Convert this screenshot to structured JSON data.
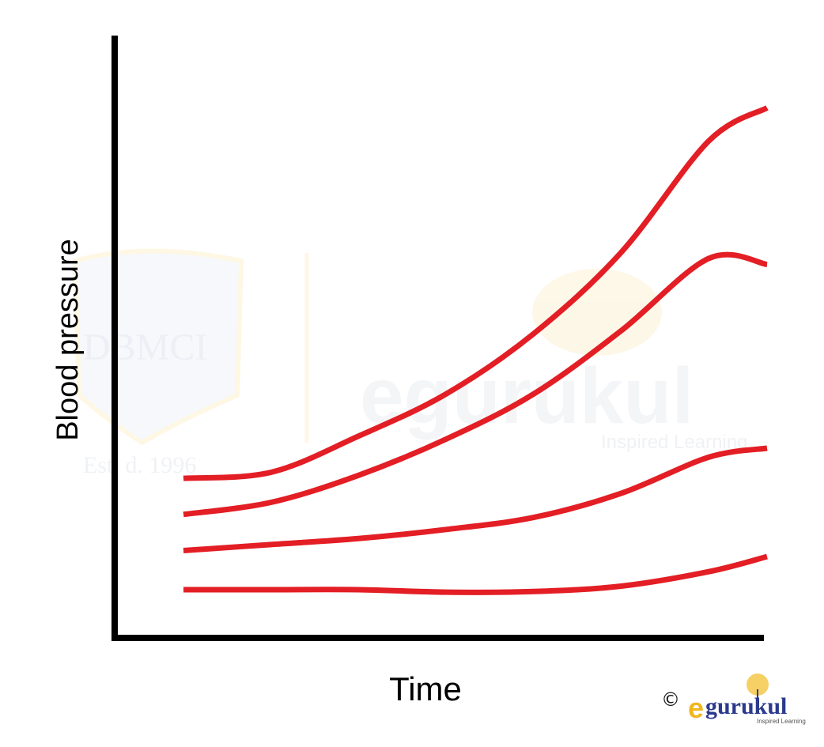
{
  "watermark": {
    "left_emblem_text": "DBMCI",
    "established": "Est. d. 1996",
    "brand": "egurukul",
    "brand_tagline": "Inspired Learning"
  },
  "footer_logo": {
    "copyright_symbol": "©",
    "brand_e": "e",
    "brand_rest": "gurukul",
    "tagline": "Inspired Learning"
  },
  "colors": {
    "curve": "#e31e25",
    "axis": "#000000",
    "logo_gold": "#f2b51d",
    "logo_blue": "#2b3a8c"
  },
  "chart_data": {
    "type": "line",
    "title": "",
    "xlabel": "Time",
    "ylabel": "Blood pressure",
    "xlim": [
      0,
      100
    ],
    "ylim": [
      0,
      100
    ],
    "grid": false,
    "legend": "none",
    "axis_ticks": "none",
    "series": [
      {
        "x": [
          0,
          15,
          30,
          45,
          60,
          75,
          90,
          100
        ],
        "values": [
          26.5,
          27.5,
          33.5,
          40.5,
          50.5,
          64,
          82.5,
          88
        ]
      },
      {
        "x": [
          0,
          15,
          30,
          45,
          60,
          75,
          90,
          100
        ],
        "values": [
          20.5,
          22.5,
          27,
          33,
          40.5,
          51,
          63,
          62
        ]
      },
      {
        "x": [
          0,
          15,
          30,
          45,
          60,
          75,
          90,
          100
        ],
        "values": [
          14.5,
          15.5,
          16.5,
          18,
          20,
          24,
          30,
          31.5
        ]
      },
      {
        "x": [
          0,
          15,
          30,
          45,
          60,
          75,
          90,
          100
        ],
        "values": [
          8,
          8,
          8,
          7.6,
          7.7,
          8.6,
          11,
          13.5
        ]
      }
    ]
  }
}
